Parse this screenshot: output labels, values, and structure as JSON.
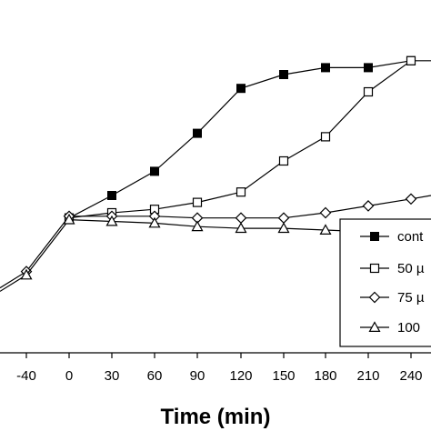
{
  "chart_data": {
    "type": "line",
    "title": "",
    "xlabel": "Time (min)",
    "ylabel": "",
    "x_ticks": [
      "-40",
      "0",
      "30",
      "60",
      "90",
      "120",
      "150",
      "180",
      "210",
      "240"
    ],
    "x": [
      -40,
      0,
      30,
      60,
      90,
      120,
      150,
      180,
      210,
      240
    ],
    "series": [
      {
        "name": "cont",
        "marker": "square-filled",
        "values": [
          null,
          38.5,
          45,
          52,
          63,
          76,
          80,
          82,
          82,
          84
        ]
      },
      {
        "name": "50 µ",
        "marker": "square-open",
        "values": [
          null,
          38.5,
          40,
          41,
          43,
          46,
          55,
          62,
          75,
          84
        ]
      },
      {
        "name": "75 µ",
        "marker": "diamond-open",
        "values": [
          23,
          39,
          39,
          39,
          38.5,
          38.5,
          38.5,
          40,
          42,
          44
        ]
      },
      {
        "name": "100",
        "marker": "triangle-open",
        "values": [
          22,
          38,
          37.5,
          37,
          36,
          35.5,
          35.5,
          35,
          34.5,
          34
        ]
      }
    ],
    "legend": {
      "position": "right",
      "entries": [
        "cont",
        "50 µ",
        "75 µ",
        "100"
      ]
    },
    "grid": false
  }
}
